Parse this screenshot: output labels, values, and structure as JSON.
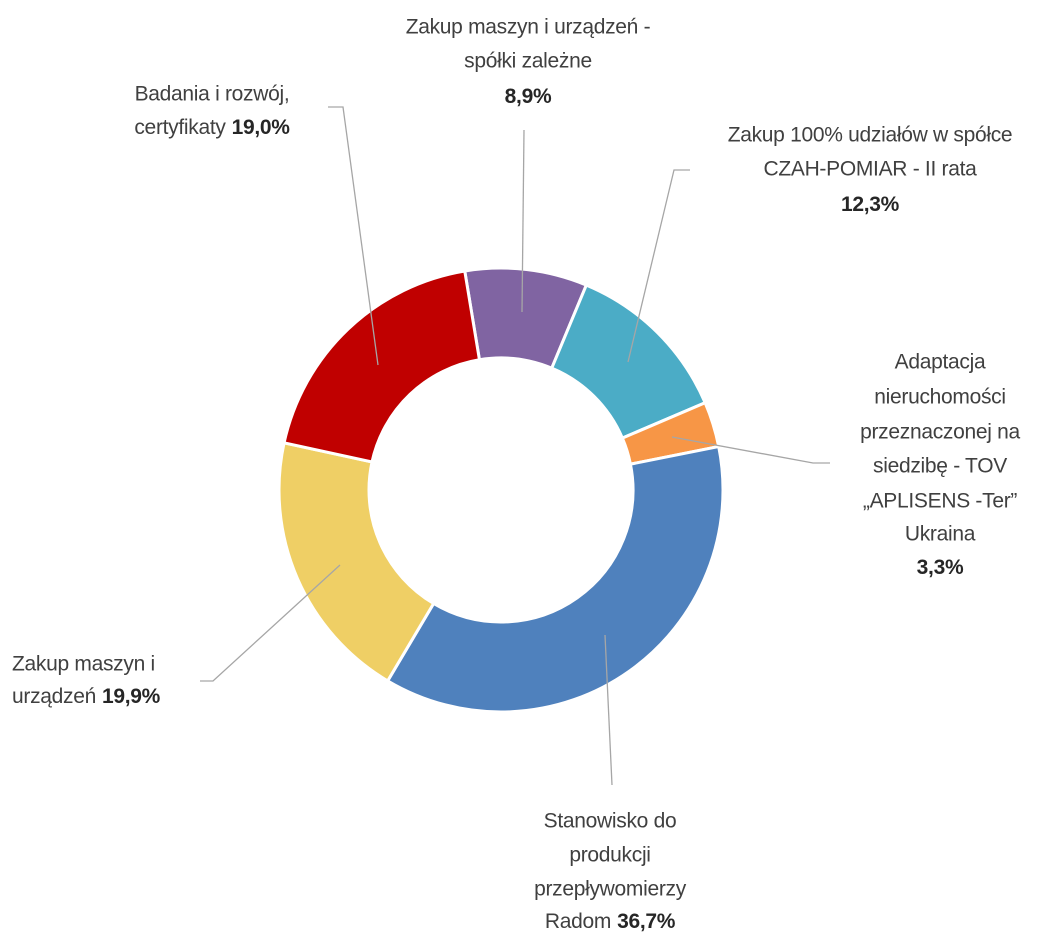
{
  "chart_data": {
    "type": "donut",
    "categories": [
      [
        "Zakup maszyn i urządzeń -",
        "spółki zależne"
      ],
      [
        "Zakup 100% udziałów w spółce",
        "CZAH-POMIAR - II rata"
      ],
      [
        "Adaptacja",
        "nieruchomości",
        "przeznaczonej na",
        "siedzibę - TOV",
        "„APLISENS -Ter”",
        "Ukraina"
      ],
      [
        "Stanowisko do",
        "produkcji",
        "przepływomierzy",
        "Radom"
      ],
      [
        "Zakup maszyn i",
        "urządzeń"
      ],
      [
        "Badania i rozwój,",
        "certyfikaty"
      ]
    ],
    "values": [
      8.9,
      12.3,
      3.3,
      36.7,
      19.9,
      19.0
    ],
    "value_labels": [
      "8,9%",
      "12,3%",
      "3,3%",
      "36,7%",
      "19,9%",
      "19,0%"
    ],
    "colors": [
      "#8064a2",
      "#4bacc6",
      "#f79646",
      "#4f81bd",
      "#efcf65",
      "#c00000"
    ]
  }
}
